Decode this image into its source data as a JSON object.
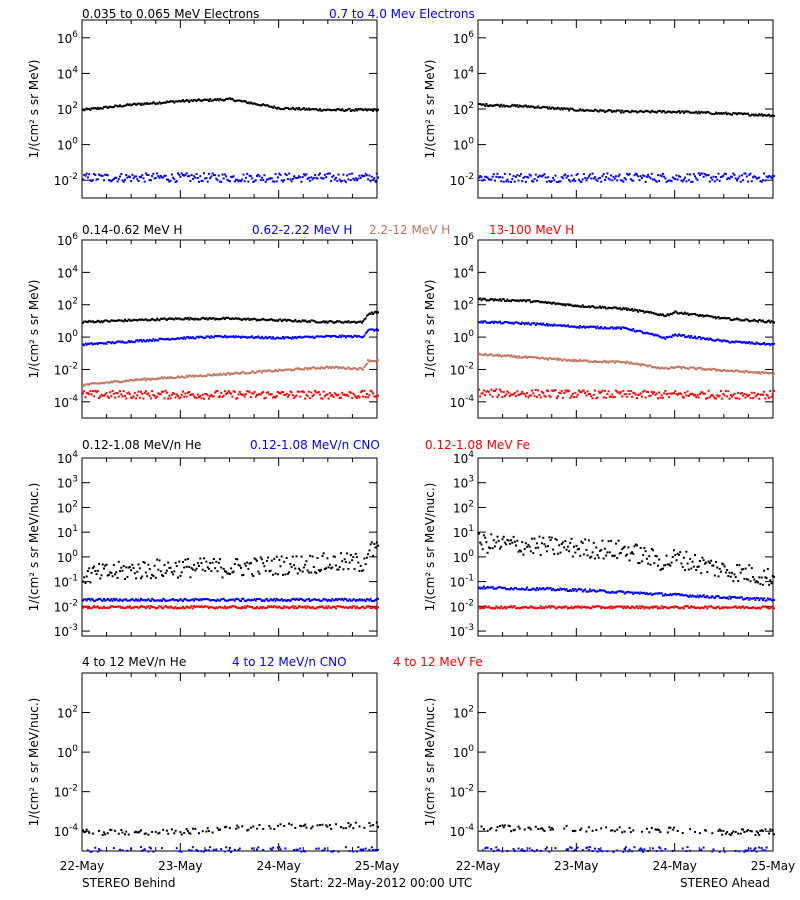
{
  "colors": {
    "black": "#000000",
    "blue": "#0000ff",
    "brown": "#c07860",
    "red": "#ff0000"
  },
  "rows": [
    {
      "legend": [
        "0.035 to 0.065 MeV Electrons",
        "0.7 to 4.0 Mev Electrons"
      ],
      "legend_colors": [
        "black",
        "blue"
      ],
      "ylabel": "1/(cm² s sr MeV)",
      "ylim_exp": [
        -3,
        7
      ],
      "ticks": [
        {
          "exp": -2,
          "label": "10",
          "sup": "-2"
        },
        {
          "exp": 0,
          "label": "10",
          "sup": "0"
        },
        {
          "exp": 2,
          "label": "10",
          "sup": "2"
        },
        {
          "exp": 4,
          "label": "10",
          "sup": "4"
        },
        {
          "exp": 6,
          "label": "10",
          "sup": "6"
        }
      ]
    },
    {
      "legend": [
        "0.14-0.62 MeV H",
        "0.62-2.22 MeV H",
        "2.2-12 MeV H",
        "13-100 MeV H"
      ],
      "legend_colors": [
        "black",
        "blue",
        "brown",
        "red"
      ],
      "ylabel": "1/(cm² s sr MeV)",
      "ylim_exp": [
        -5,
        6
      ],
      "ticks": [
        {
          "exp": -4,
          "label": "10",
          "sup": "-4"
        },
        {
          "exp": -2,
          "label": "10",
          "sup": "-2"
        },
        {
          "exp": 0,
          "label": "10",
          "sup": "0"
        },
        {
          "exp": 2,
          "label": "10",
          "sup": "2"
        },
        {
          "exp": 4,
          "label": "10",
          "sup": "4"
        },
        {
          "exp": 6,
          "label": "10",
          "sup": "6"
        }
      ]
    },
    {
      "legend": [
        "0.12-1.08 MeV/n He",
        "0.12-1.08 MeV/n CNO",
        "0.12-1.08 MeV Fe"
      ],
      "legend_colors": [
        "black",
        "blue",
        "red"
      ],
      "ylabel": "1/(cm² s sr MeV/nuc.)",
      "ylim_exp": [
        -3.2,
        4
      ],
      "ticks": [
        {
          "exp": -3,
          "label": "10",
          "sup": "-3"
        },
        {
          "exp": -2,
          "label": "10",
          "sup": "-2"
        },
        {
          "exp": -1,
          "label": "10",
          "sup": "-1"
        },
        {
          "exp": 0,
          "label": "10",
          "sup": "0"
        },
        {
          "exp": 1,
          "label": "10",
          "sup": "1"
        },
        {
          "exp": 2,
          "label": "10",
          "sup": "2"
        },
        {
          "exp": 3,
          "label": "10",
          "sup": "3"
        },
        {
          "exp": 4,
          "label": "10",
          "sup": "4"
        }
      ]
    },
    {
      "legend": [
        "4 to 12 MeV/n He",
        "4 to 12 MeV/n CNO",
        "4 to 12 MeV Fe"
      ],
      "legend_colors": [
        "black",
        "blue",
        "red"
      ],
      "ylabel": "1/(cm² s sr MeV/nuc.)",
      "ylim_exp": [
        -5,
        4
      ],
      "ticks": [
        {
          "exp": -4,
          "label": "10",
          "sup": "-4"
        },
        {
          "exp": -2,
          "label": "10",
          "sup": "-2"
        },
        {
          "exp": 0,
          "label": "10",
          "sup": "0"
        },
        {
          "exp": 2,
          "label": "10",
          "sup": "2"
        }
      ]
    }
  ],
  "xticks": [
    "22-May",
    "23-May",
    "24-May",
    "25-May"
  ],
  "footer": {
    "left": "STEREO Behind",
    "center": "Start: 22-May-2012 00:00 UTC",
    "right": "STEREO Ahead"
  },
  "chart_data": [
    {
      "panel": "behind-electrons",
      "type": "scatter",
      "series": [
        {
          "name": "0.035 to 0.065 MeV Electrons",
          "color": "black",
          "x": [
            0,
            0.5,
            1.0,
            1.5,
            2.0,
            2.5,
            3.0
          ],
          "log10_y": [
            2.0,
            2.3,
            2.5,
            2.6,
            2.1,
            2.0,
            2.0
          ]
        },
        {
          "name": "0.7 to 4.0 Mev Electrons",
          "color": "blue",
          "x": [
            0,
            1.5,
            3.0
          ],
          "log10_y": [
            -1.8,
            -1.8,
            -1.8
          ]
        }
      ]
    },
    {
      "panel": "ahead-electrons",
      "type": "scatter",
      "series": [
        {
          "name": "0.035 to 0.065 MeV Electrons",
          "color": "black",
          "x": [
            0,
            0.5,
            1.0,
            1.5,
            2.0,
            2.5,
            3.0
          ],
          "log10_y": [
            2.3,
            2.2,
            2.0,
            1.9,
            1.9,
            1.8,
            1.7
          ]
        },
        {
          "name": "0.7 to 4.0 Mev Electrons",
          "color": "blue",
          "x": [
            0,
            1.5,
            3.0
          ],
          "log10_y": [
            -1.8,
            -1.8,
            -1.8
          ]
        }
      ]
    },
    {
      "panel": "behind-protons",
      "type": "scatter",
      "series": [
        {
          "name": "0.14-0.62 MeV H",
          "color": "black",
          "x": [
            0,
            0.5,
            1.0,
            1.5,
            2.0,
            2.5,
            2.85,
            2.9,
            3.0
          ],
          "log10_y": [
            1.0,
            1.1,
            1.2,
            1.2,
            1.1,
            1.0,
            1.0,
            1.5,
            1.6
          ]
        },
        {
          "name": "0.62-2.22 MeV H",
          "color": "blue",
          "x": [
            0,
            0.5,
            1.0,
            1.5,
            2.0,
            2.5,
            2.85,
            2.9,
            3.0
          ],
          "log10_y": [
            -0.4,
            -0.2,
            0.0,
            0.1,
            0.0,
            0.1,
            0.1,
            0.5,
            0.5
          ]
        },
        {
          "name": "2.2-12 MeV H",
          "color": "brown",
          "x": [
            0,
            0.5,
            1.0,
            1.5,
            2.0,
            2.5,
            2.85,
            2.9,
            3.0
          ],
          "log10_y": [
            -2.9,
            -2.6,
            -2.4,
            -2.2,
            -2.0,
            -1.8,
            -1.9,
            -1.4,
            -1.4
          ]
        },
        {
          "name": "13-100 MeV H",
          "color": "red",
          "x": [
            0,
            1.5,
            3.0
          ],
          "log10_y": [
            -3.5,
            -3.5,
            -3.5
          ]
        }
      ]
    },
    {
      "panel": "ahead-protons",
      "type": "scatter",
      "series": [
        {
          "name": "0.14-0.62 MeV H",
          "color": "black",
          "x": [
            0,
            0.5,
            1.0,
            1.5,
            1.9,
            2.0,
            2.5,
            3.0
          ],
          "log10_y": [
            2.4,
            2.3,
            2.0,
            1.8,
            1.4,
            1.6,
            1.2,
            1.0
          ]
        },
        {
          "name": "0.62-2.22 MeV H",
          "color": "blue",
          "x": [
            0,
            0.5,
            1.0,
            1.5,
            1.9,
            2.0,
            2.5,
            3.0
          ],
          "log10_y": [
            1.0,
            0.9,
            0.7,
            0.6,
            0.0,
            0.2,
            -0.2,
            -0.4
          ]
        },
        {
          "name": "2.2-12 MeV H",
          "color": "brown",
          "x": [
            0,
            0.5,
            1.0,
            1.5,
            1.9,
            2.0,
            2.5,
            3.0
          ],
          "log10_y": [
            -1.0,
            -1.2,
            -1.4,
            -1.5,
            -1.9,
            -1.8,
            -2.0,
            -2.2
          ]
        },
        {
          "name": "13-100 MeV H",
          "color": "red",
          "x": [
            0,
            1.5,
            3.0
          ],
          "log10_y": [
            -3.4,
            -3.5,
            -3.5
          ]
        }
      ]
    },
    {
      "panel": "behind-suprathermal",
      "type": "scatter",
      "series": [
        {
          "name": "0.12-1.08 MeV/n He",
          "color": "black",
          "x": [
            0,
            0.5,
            1.0,
            1.5,
            2.0,
            2.5,
            2.85,
            2.9,
            3.0
          ],
          "log10_y": [
            -0.7,
            -0.5,
            -0.4,
            -0.4,
            -0.3,
            -0.2,
            -0.2,
            0.3,
            0.3
          ]
        },
        {
          "name": "0.12-1.08 MeV/n CNO",
          "color": "blue",
          "x": [
            0,
            1.5,
            3.0
          ],
          "log10_y": [
            -1.7,
            -1.7,
            -1.7
          ]
        },
        {
          "name": "0.12-1.08 MeV Fe",
          "color": "red",
          "x": [
            0,
            1.5,
            3.0
          ],
          "log10_y": [
            -2.0,
            -2.0,
            -2.0
          ]
        }
      ]
    },
    {
      "panel": "ahead-suprathermal",
      "type": "scatter",
      "series": [
        {
          "name": "0.12-1.08 MeV/n He",
          "color": "black",
          "x": [
            0,
            0.5,
            1.0,
            1.5,
            1.9,
            2.0,
            2.5,
            3.0
          ],
          "log10_y": [
            0.6,
            0.5,
            0.4,
            0.3,
            -0.2,
            0.0,
            -0.5,
            -0.8
          ]
        },
        {
          "name": "0.12-1.08 MeV/n CNO",
          "color": "blue",
          "x": [
            0,
            1.0,
            2.0,
            3.0
          ],
          "log10_y": [
            -1.2,
            -1.3,
            -1.5,
            -1.7
          ]
        },
        {
          "name": "0.12-1.08 MeV Fe",
          "color": "red",
          "x": [
            0,
            1.5,
            3.0
          ],
          "log10_y": [
            -2.0,
            -2.0,
            -2.0
          ]
        }
      ]
    },
    {
      "panel": "behind-energetic",
      "type": "scatter",
      "series": [
        {
          "name": "4 to 12 MeV/n He",
          "color": "black",
          "x": [
            0,
            1.0,
            1.5,
            2.0,
            2.5,
            3.0
          ],
          "log10_y": [
            -4.0,
            -4.0,
            -3.8,
            -3.7,
            -3.7,
            -3.6
          ]
        },
        {
          "name": "4 to 12 MeV/n CNO",
          "color": "blue",
          "x": [
            0,
            1.5,
            3.0
          ],
          "log10_y": [
            -4.9,
            -4.9,
            -4.9
          ]
        }
      ]
    },
    {
      "panel": "ahead-energetic",
      "type": "scatter",
      "series": [
        {
          "name": "4 to 12 MeV/n He",
          "color": "black",
          "x": [
            0,
            1.0,
            1.5,
            2.0,
            2.5,
            3.0
          ],
          "log10_y": [
            -3.8,
            -3.8,
            -3.9,
            -3.9,
            -4.0,
            -4.0
          ]
        },
        {
          "name": "4 to 12 MeV/n CNO",
          "color": "blue",
          "x": [
            0,
            1.5,
            3.0
          ],
          "log10_y": [
            -4.9,
            -4.9,
            -4.9
          ]
        }
      ]
    }
  ]
}
